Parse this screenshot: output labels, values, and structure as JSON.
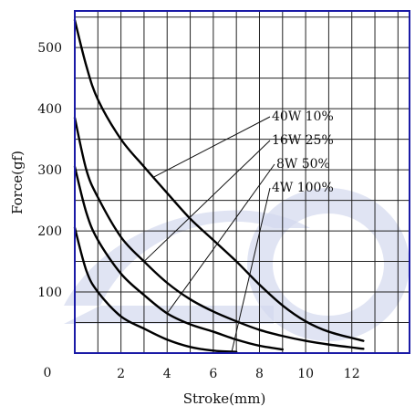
{
  "chart_data": {
    "type": "line",
    "xlabel": "Stroke(mm)",
    "ylabel": "Force(gf)",
    "xlim": [
      0,
      14.5
    ],
    "ylim": [
      0,
      560
    ],
    "x_ticks": [
      2,
      4,
      6,
      8,
      10,
      12
    ],
    "y_ticks": [
      100,
      200,
      300,
      400,
      500
    ],
    "origin_label": "0",
    "grid": true,
    "series": [
      {
        "name": "40W 10%",
        "x": [
          0,
          0.5,
          1,
          2,
          3,
          4,
          5,
          6,
          7,
          8,
          9,
          10,
          11,
          12.5
        ],
        "y": [
          545,
          470,
          415,
          350,
          305,
          262,
          220,
          185,
          150,
          112,
          78,
          52,
          35,
          20
        ]
      },
      {
        "name": "16W 25%",
        "x": [
          0,
          0.5,
          1,
          2,
          3,
          4,
          5,
          6,
          7,
          8,
          9,
          10,
          11,
          12.5
        ],
        "y": [
          385,
          300,
          255,
          190,
          150,
          115,
          88,
          68,
          52,
          38,
          28,
          20,
          14,
          7
        ]
      },
      {
        "name": "8W 50%",
        "x": [
          0,
          0.5,
          1,
          2,
          3,
          4,
          5,
          6,
          7,
          8,
          9
        ],
        "y": [
          305,
          230,
          185,
          130,
          95,
          65,
          47,
          35,
          22,
          12,
          6
        ]
      },
      {
        "name": "4W 100%",
        "x": [
          0,
          0.5,
          1,
          2,
          3,
          4,
          5,
          6,
          7
        ],
        "y": [
          205,
          135,
          100,
          60,
          40,
          22,
          10,
          4,
          2
        ]
      }
    ],
    "legend_entries": [
      "40W  10%",
      "16W  25%",
      "8W  50%",
      "4W  100%"
    ]
  }
}
